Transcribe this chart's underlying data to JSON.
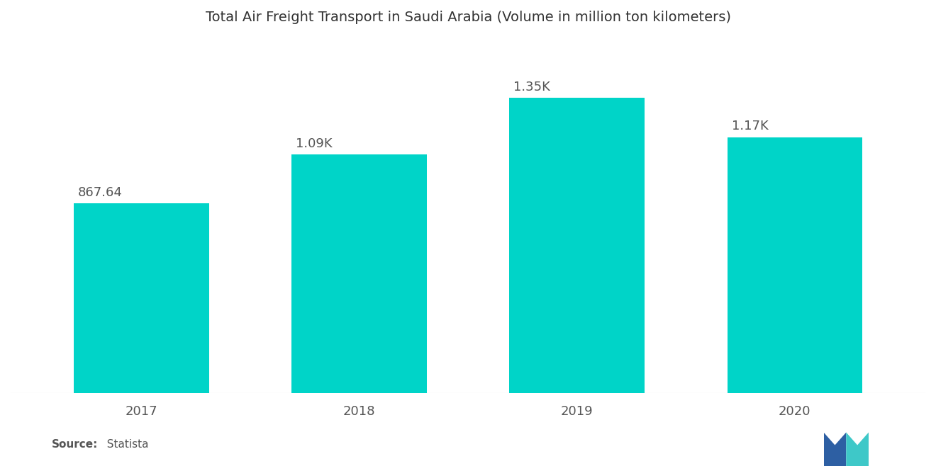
{
  "title": "Total Air Freight Transport in Saudi Arabia (Volume in million ton kilometers)",
  "categories": [
    "2017",
    "2018",
    "2019",
    "2020"
  ],
  "values": [
    867.64,
    1090.0,
    1350.0,
    1170.0
  ],
  "labels": [
    "867.64",
    "1.09K",
    "1.35K",
    "1.17K"
  ],
  "bar_color": "#00D4C8",
  "background_color": "#FFFFFF",
  "title_fontsize": 14,
  "label_fontsize": 13,
  "tick_fontsize": 13,
  "source_bold": "Source:",
  "source_normal": "  Statista",
  "bar_width": 0.62,
  "ylim": [
    0,
    1600
  ],
  "label_color": "#555555",
  "tick_color": "#555555"
}
